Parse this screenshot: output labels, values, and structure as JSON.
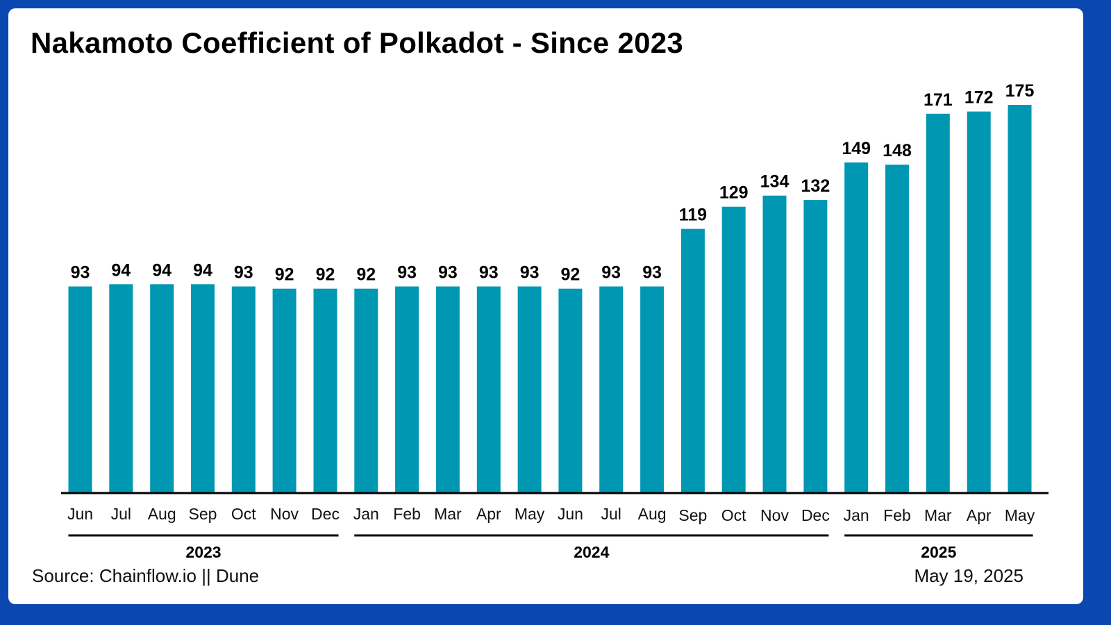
{
  "chart_data": {
    "type": "bar",
    "title": "Nakamoto Coefficient of Polkadot - Since 2023",
    "categories": [
      "Jun",
      "Jul",
      "Aug",
      "Sep",
      "Oct",
      "Nov",
      "Dec",
      "Jan",
      "Feb",
      "Mar",
      "Apr",
      "May",
      "Jun",
      "Jul",
      "Aug",
      "Sep",
      "Oct",
      "Nov",
      "Dec",
      "Jan",
      "Feb",
      "Mar",
      "Apr",
      "May"
    ],
    "values": [
      93,
      94,
      94,
      94,
      93,
      92,
      92,
      92,
      93,
      93,
      93,
      93,
      92,
      93,
      93,
      119,
      129,
      134,
      132,
      149,
      148,
      171,
      172,
      175
    ],
    "year_groups": [
      {
        "label": "2023",
        "start": 0,
        "end": 6
      },
      {
        "label": "2024",
        "start": 7,
        "end": 18
      },
      {
        "label": "2025",
        "start": 19,
        "end": 23
      }
    ],
    "xlabel": "",
    "ylabel": "",
    "ylim": [
      0,
      175
    ],
    "grid": false,
    "bar_color": "#0097b2"
  },
  "footer": {
    "source": "Source: Chainflow.io || Dune",
    "date": "May 19, 2025"
  },
  "colors": {
    "frame": "#0a47b0",
    "background": "#ffffff",
    "bar": "#0097b2",
    "text": "#000000"
  }
}
